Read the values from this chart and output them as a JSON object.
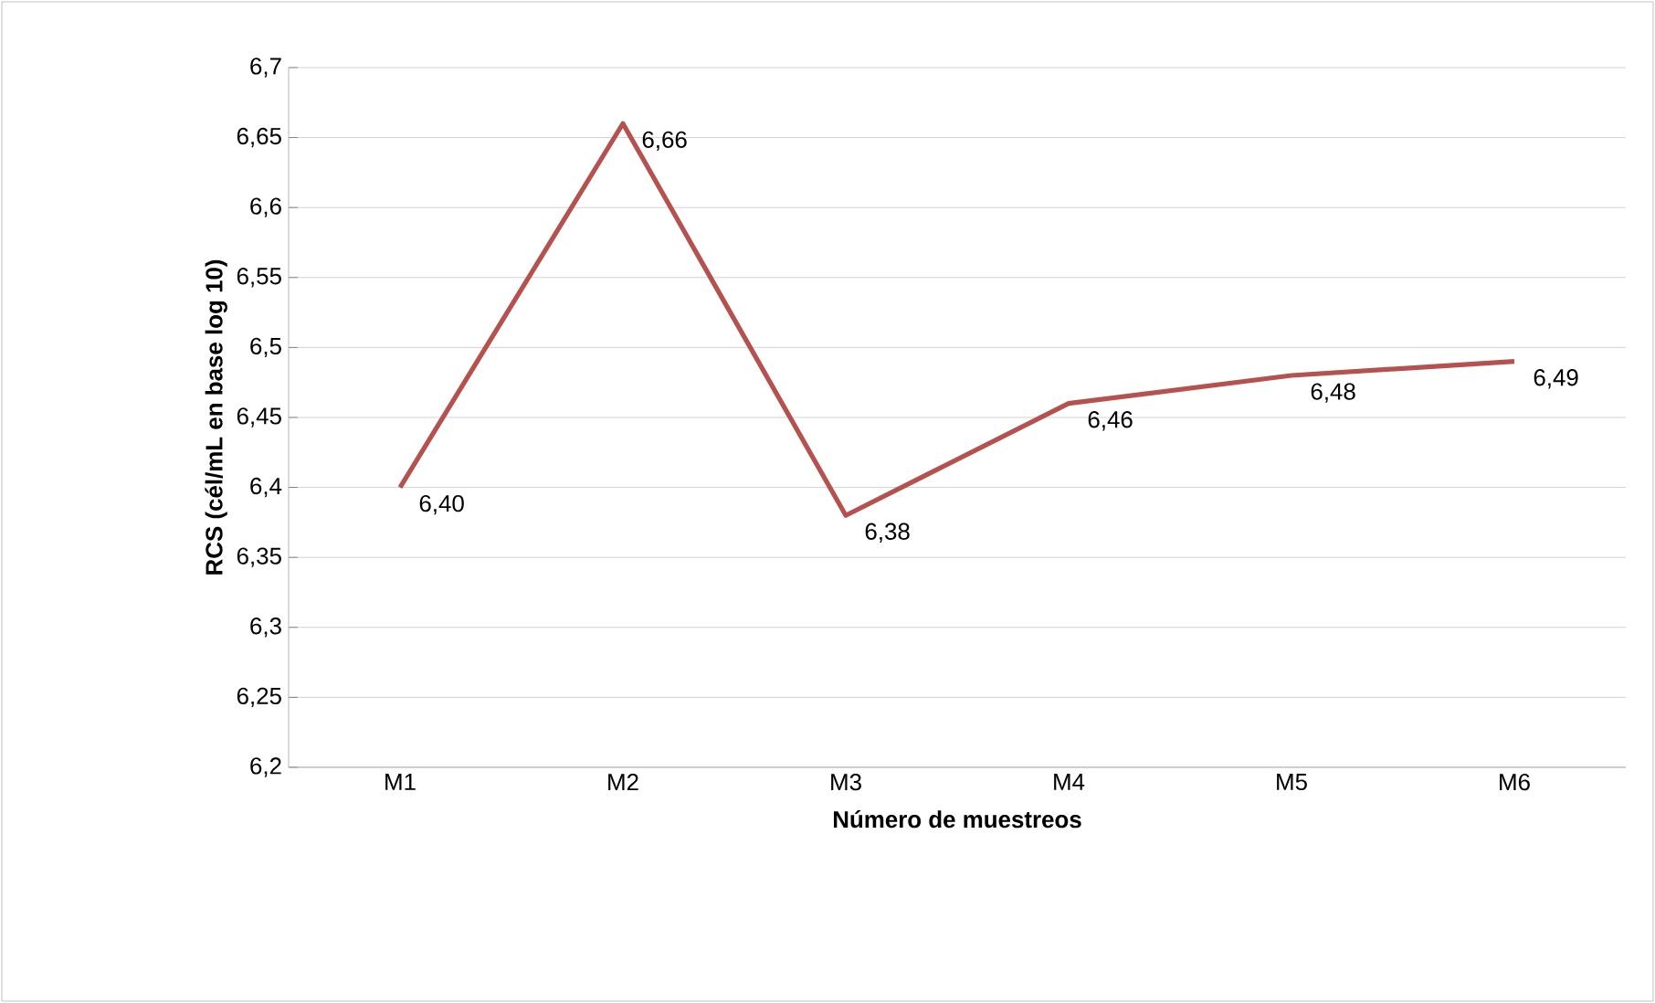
{
  "chart_data": {
    "type": "line",
    "xlabel": "**Número de muestreos**",
    "ylabel": "**RCS (cél/mL en base  log 10)**",
    "categories": [
      "M1",
      "M2",
      "M3",
      "M4",
      "M5",
      "M6"
    ],
    "series": [
      {
        "color": "#b5524f",
        "values": [
          6.4,
          6.66,
          6.38,
          6.46,
          6.48,
          6.49
        ],
        "value_labels": [
          "6,40",
          "6,66",
          "6,38",
          "6,46",
          "6,48",
          "6,49"
        ]
      }
    ],
    "ylim": [
      6.2,
      6.7
    ],
    "yticks": [
      {
        "value": 6.2,
        "label": "6,2"
      },
      {
        "value": 6.25,
        "label": "6,25"
      },
      {
        "value": 6.3,
        "label": "6,3"
      },
      {
        "value": 6.35,
        "label": "6,35"
      },
      {
        "value": 6.4,
        "label": "6,4"
      },
      {
        "value": 6.45,
        "label": "6,45"
      },
      {
        "value": 6.5,
        "label": "6,5"
      },
      {
        "value": 6.55,
        "label": "6,55"
      },
      {
        "value": 6.6,
        "label": "6,6"
      },
      {
        "value": 6.65,
        "label": "6,65"
      },
      {
        "value": 6.7,
        "label": "6,7"
      }
    ],
    "grid": "y",
    "marker": "none",
    "line_style": "solid"
  }
}
